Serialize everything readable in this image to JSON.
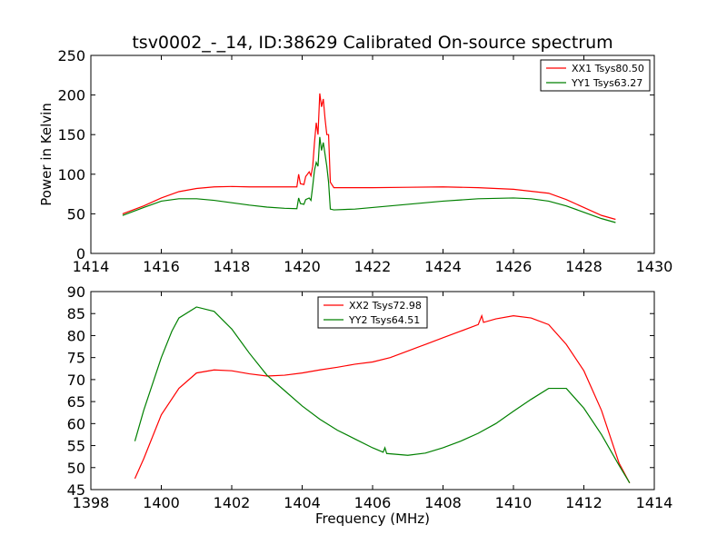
{
  "title": "tsv0002_-_14, ID:38629 Calibrated On-source spectrum",
  "colors": {
    "red": "#ff0000",
    "green": "#008000"
  },
  "chart_data": [
    {
      "type": "line",
      "ylabel": "Power in Kelvin",
      "xlabel": "",
      "xlim": [
        1414,
        1430
      ],
      "ylim": [
        0,
        250
      ],
      "xticks": [
        1414,
        1416,
        1418,
        1420,
        1422,
        1424,
        1426,
        1428,
        1430
      ],
      "yticks": [
        0,
        50,
        100,
        150,
        200,
        250
      ],
      "legend_position": "top-right",
      "series": [
        {
          "name": "XX1 Tsys80.50",
          "color": "#ff0000",
          "points": [
            [
              1414.9,
              50
            ],
            [
              1415.5,
              60
            ],
            [
              1416,
              70
            ],
            [
              1416.5,
              78
            ],
            [
              1417,
              82
            ],
            [
              1417.5,
              84
            ],
            [
              1418,
              84.5
            ],
            [
              1418.5,
              84
            ],
            [
              1419,
              84
            ],
            [
              1419.5,
              84
            ],
            [
              1419.85,
              84
            ],
            [
              1419.9,
              100
            ],
            [
              1419.95,
              88
            ],
            [
              1420.05,
              87
            ],
            [
              1420.1,
              97
            ],
            [
              1420.2,
              103
            ],
            [
              1420.25,
              98
            ],
            [
              1420.3,
              110
            ],
            [
              1420.35,
              140
            ],
            [
              1420.4,
              165
            ],
            [
              1420.45,
              150
            ],
            [
              1420.5,
              202
            ],
            [
              1420.55,
              185
            ],
            [
              1420.6,
              195
            ],
            [
              1420.65,
              170
            ],
            [
              1420.7,
              150
            ],
            [
              1420.75,
              150
            ],
            [
              1420.8,
              90
            ],
            [
              1420.9,
              83
            ],
            [
              1421.5,
              83
            ],
            [
              1422,
              83
            ],
            [
              1423,
              83.5
            ],
            [
              1424,
              84
            ],
            [
              1425,
              83
            ],
            [
              1426,
              81
            ],
            [
              1427,
              76
            ],
            [
              1427.5,
              68
            ],
            [
              1428,
              58
            ],
            [
              1428.5,
              48
            ],
            [
              1428.9,
              43
            ]
          ]
        },
        {
          "name": "YY1 Tsys63.27",
          "color": "#008000",
          "points": [
            [
              1414.9,
              48
            ],
            [
              1415.5,
              58
            ],
            [
              1416,
              66
            ],
            [
              1416.5,
              69
            ],
            [
              1417,
              69
            ],
            [
              1417.5,
              67
            ],
            [
              1418,
              64
            ],
            [
              1418.5,
              61
            ],
            [
              1419,
              58.5
            ],
            [
              1419.5,
              57
            ],
            [
              1419.85,
              56.5
            ],
            [
              1419.9,
              70
            ],
            [
              1419.95,
              63
            ],
            [
              1420.05,
              62
            ],
            [
              1420.1,
              68
            ],
            [
              1420.2,
              70
            ],
            [
              1420.25,
              67
            ],
            [
              1420.3,
              85
            ],
            [
              1420.35,
              105
            ],
            [
              1420.4,
              115
            ],
            [
              1420.45,
              110
            ],
            [
              1420.5,
              147
            ],
            [
              1420.55,
              130
            ],
            [
              1420.6,
              140
            ],
            [
              1420.65,
              125
            ],
            [
              1420.7,
              110
            ],
            [
              1420.75,
              90
            ],
            [
              1420.8,
              56
            ],
            [
              1420.9,
              55
            ],
            [
              1421.5,
              56
            ],
            [
              1422,
              58
            ],
            [
              1423,
              62
            ],
            [
              1424,
              66
            ],
            [
              1425,
              69
            ],
            [
              1426,
              70
            ],
            [
              1426.5,
              69
            ],
            [
              1427,
              66
            ],
            [
              1427.5,
              60
            ],
            [
              1428,
              52
            ],
            [
              1428.5,
              44
            ],
            [
              1428.9,
              39
            ]
          ]
        }
      ]
    },
    {
      "type": "line",
      "ylabel": "",
      "xlabel": "Frequency (MHz)",
      "xlim": [
        1398,
        1414
      ],
      "ylim": [
        45,
        90
      ],
      "xticks": [
        1398,
        1400,
        1402,
        1404,
        1406,
        1408,
        1410,
        1412,
        1414
      ],
      "yticks": [
        45,
        50,
        55,
        60,
        65,
        70,
        75,
        80,
        85,
        90
      ],
      "legend_position": "top-center",
      "series": [
        {
          "name": "XX2 Tsys72.98",
          "color": "#ff0000",
          "points": [
            [
              1399.25,
              47.5
            ],
            [
              1399.5,
              52
            ],
            [
              1400,
              62
            ],
            [
              1400.5,
              68
            ],
            [
              1401,
              71.5
            ],
            [
              1401.5,
              72.2
            ],
            [
              1402,
              72
            ],
            [
              1402.5,
              71.3
            ],
            [
              1403,
              70.8
            ],
            [
              1403.5,
              71
            ],
            [
              1404,
              71.5
            ],
            [
              1404.5,
              72.2
            ],
            [
              1405,
              72.8
            ],
            [
              1405.5,
              73.5
            ],
            [
              1406,
              74
            ],
            [
              1406.5,
              75
            ],
            [
              1407,
              76.5
            ],
            [
              1407.5,
              78
            ],
            [
              1408,
              79.5
            ],
            [
              1408.5,
              81
            ],
            [
              1409,
              82.5
            ],
            [
              1409.1,
              84.5
            ],
            [
              1409.15,
              83
            ],
            [
              1409.5,
              83.8
            ],
            [
              1410,
              84.5
            ],
            [
              1410.5,
              84
            ],
            [
              1411,
              82.5
            ],
            [
              1411.5,
              78
            ],
            [
              1412,
              72
            ],
            [
              1412.5,
              63
            ],
            [
              1413,
              51
            ],
            [
              1413.3,
              46.5
            ]
          ]
        },
        {
          "name": "YY2 Tsys64.51",
          "color": "#008000",
          "points": [
            [
              1399.25,
              56
            ],
            [
              1399.5,
              63
            ],
            [
              1400,
              75
            ],
            [
              1400.25,
              80
            ],
            [
              1400.3,
              81
            ],
            [
              1400.5,
              84
            ],
            [
              1401,
              86.5
            ],
            [
              1401.5,
              85.5
            ],
            [
              1402,
              81.5
            ],
            [
              1402.5,
              76
            ],
            [
              1403,
              71
            ],
            [
              1403.5,
              67.5
            ],
            [
              1404,
              64
            ],
            [
              1404.5,
              61
            ],
            [
              1405,
              58.5
            ],
            [
              1405.5,
              56.5
            ],
            [
              1406,
              54.5
            ],
            [
              1406.3,
              53.5
            ],
            [
              1406.35,
              54.5
            ],
            [
              1406.4,
              53.2
            ],
            [
              1407,
              52.8
            ],
            [
              1407.5,
              53.3
            ],
            [
              1408,
              54.5
            ],
            [
              1408.5,
              56
            ],
            [
              1409,
              57.8
            ],
            [
              1409.5,
              60
            ],
            [
              1410,
              62.8
            ],
            [
              1410.5,
              65.5
            ],
            [
              1411,
              68
            ],
            [
              1411.5,
              68
            ],
            [
              1412,
              63.5
            ],
            [
              1412.5,
              57.5
            ],
            [
              1413,
              50.5
            ],
            [
              1413.3,
              46.5
            ]
          ]
        }
      ]
    }
  ]
}
